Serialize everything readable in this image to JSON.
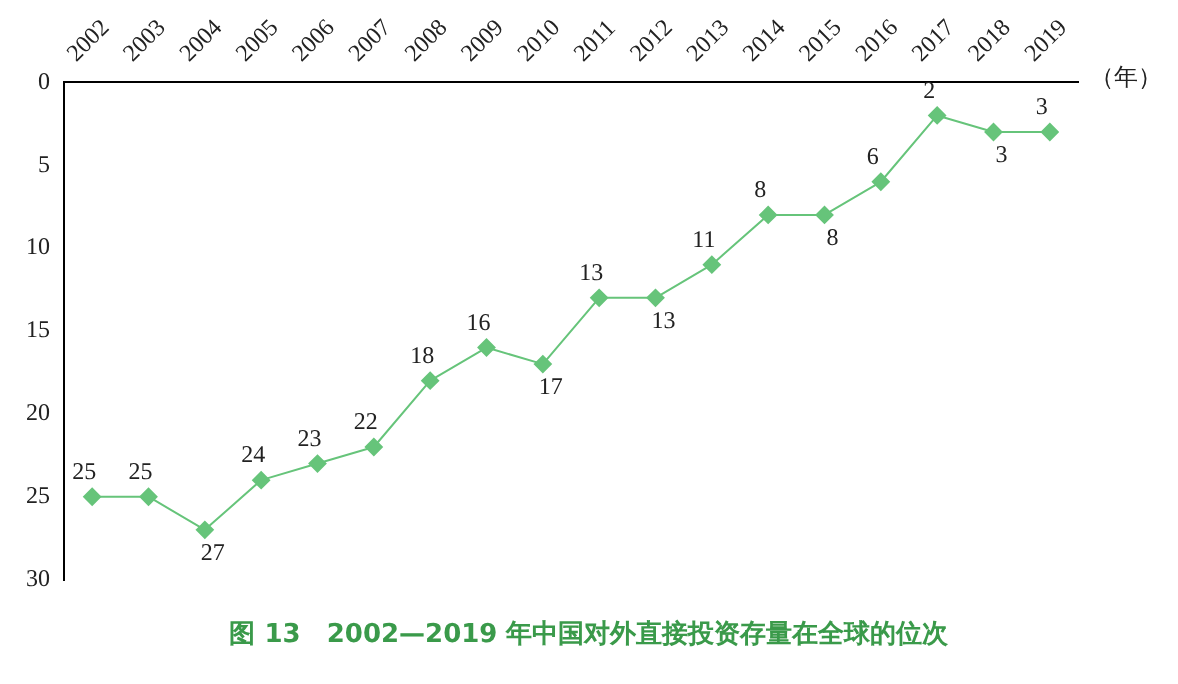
{
  "chart_data": {
    "type": "line",
    "title": "图 13　2002—2019 年中国对外直接投资存量在全球的位次",
    "xlabel": "（年）",
    "categories": [
      "2002",
      "2003",
      "2004",
      "2005",
      "2006",
      "2007",
      "2008",
      "2009",
      "2010",
      "2011",
      "2012",
      "2013",
      "2014",
      "2015",
      "2016",
      "2017",
      "2018",
      "2019"
    ],
    "series": [
      {
        "color": "#66c47a",
        "values": [
          25,
          25,
          27,
          24,
          23,
          22,
          18,
          16,
          17,
          13,
          13,
          11,
          8,
          8,
          6,
          2,
          3,
          3
        ]
      }
    ],
    "ylim": [
      30,
      0
    ],
    "yticks": [
      0,
      5,
      10,
      15,
      20,
      25,
      30
    ],
    "grid": false,
    "legend": false,
    "marker": "diamond",
    "line_style": "solid",
    "data_labels": true
  }
}
